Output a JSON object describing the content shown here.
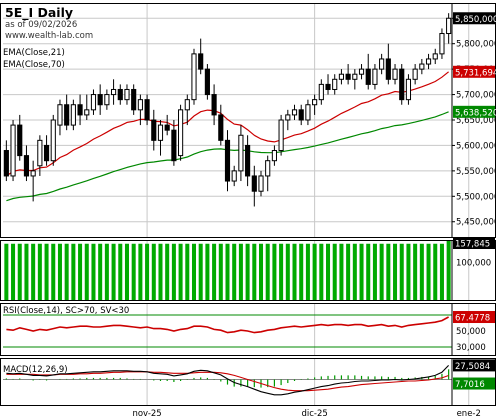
{
  "header": {
    "symbol": "5E_I Daily",
    "as_of": "as of 09/02/2026",
    "website": "www.wealth-lab.com"
  },
  "colors": {
    "up_candle": "#ffffff",
    "down_candle": "#000000",
    "ema21": "#cc0000",
    "ema70": "#008800",
    "volume": "#00aa00",
    "rsi": "#cc0000",
    "rsi_band": "#008800",
    "macd": "#000000",
    "signal": "#cc0000",
    "grid": "#c8c8c8"
  },
  "chart_data": [
    {
      "type": "candlestick",
      "panel": "price",
      "series_labels": [
        "EMA(Close,21)",
        "EMA(Close,70)"
      ],
      "ylim": [
        5420,
        5880
      ],
      "y_ticks": [
        "5,850,000",
        "5,800,000",
        "5,750,000",
        "5,700,000",
        "5,650,000",
        "5,600,000",
        "5,550,000",
        "5,500,000",
        "5,450,000"
      ],
      "y_tick_values": [
        5850,
        5800,
        5750,
        5700,
        5650,
        5600,
        5550,
        5500,
        5450
      ],
      "x_tick_labels": [
        "nov-25",
        "dic-25",
        "ene-2"
      ],
      "x_tick_index": [
        21,
        46,
        69
      ],
      "last_price_label": "5,850,000",
      "ema21_label": "5,731,694",
      "ema70_label": "5,638,520",
      "candles": [
        [
          5590,
          5610,
          5530,
          5540
        ],
        [
          5540,
          5650,
          5530,
          5640
        ],
        [
          5640,
          5660,
          5570,
          5580
        ],
        [
          5580,
          5600,
          5530,
          5540
        ],
        [
          5540,
          5570,
          5490,
          5550
        ],
        [
          5560,
          5620,
          5540,
          5610
        ],
        [
          5600,
          5620,
          5560,
          5570
        ],
        [
          5570,
          5660,
          5560,
          5650
        ],
        [
          5640,
          5690,
          5620,
          5680
        ],
        [
          5680,
          5700,
          5630,
          5640
        ],
        [
          5640,
          5690,
          5630,
          5680
        ],
        [
          5680,
          5700,
          5640,
          5660
        ],
        [
          5660,
          5700,
          5650,
          5670
        ],
        [
          5670,
          5710,
          5660,
          5700
        ],
        [
          5700,
          5720,
          5660,
          5680
        ],
        [
          5680,
          5710,
          5670,
          5700
        ],
        [
          5700,
          5730,
          5680,
          5710
        ],
        [
          5710,
          5720,
          5680,
          5690
        ],
        [
          5690,
          5720,
          5680,
          5710
        ],
        [
          5710,
          5720,
          5660,
          5670
        ],
        [
          5670,
          5700,
          5640,
          5690
        ],
        [
          5690,
          5700,
          5640,
          5650
        ],
        [
          5650,
          5670,
          5590,
          5610
        ],
        [
          5610,
          5650,
          5580,
          5640
        ],
        [
          5640,
          5660,
          5620,
          5630
        ],
        [
          5630,
          5650,
          5560,
          5570
        ],
        [
          5580,
          5680,
          5570,
          5670
        ],
        [
          5670,
          5700,
          5640,
          5690
        ],
        [
          5690,
          5790,
          5680,
          5780
        ],
        [
          5780,
          5810,
          5740,
          5750
        ],
        [
          5750,
          5760,
          5690,
          5700
        ],
        [
          5700,
          5720,
          5640,
          5660
        ],
        [
          5660,
          5680,
          5600,
          5610
        ],
        [
          5610,
          5630,
          5510,
          5530
        ],
        [
          5530,
          5560,
          5520,
          5550
        ],
        [
          5550,
          5640,
          5530,
          5620
        ],
        [
          5600,
          5620,
          5520,
          5540
        ],
        [
          5540,
          5560,
          5480,
          5510
        ],
        [
          5510,
          5550,
          5500,
          5540
        ],
        [
          5540,
          5580,
          5510,
          5570
        ],
        [
          5570,
          5600,
          5560,
          5590
        ],
        [
          5590,
          5660,
          5580,
          5650
        ],
        [
          5650,
          5670,
          5630,
          5660
        ],
        [
          5660,
          5680,
          5650,
          5670
        ],
        [
          5670,
          5680,
          5640,
          5650
        ],
        [
          5650,
          5690,
          5640,
          5680
        ],
        [
          5680,
          5700,
          5660,
          5690
        ],
        [
          5690,
          5730,
          5680,
          5720
        ],
        [
          5720,
          5740,
          5700,
          5710
        ],
        [
          5710,
          5740,
          5700,
          5730
        ],
        [
          5730,
          5750,
          5720,
          5740
        ],
        [
          5740,
          5760,
          5720,
          5730
        ],
        [
          5730,
          5750,
          5710,
          5740
        ],
        [
          5740,
          5760,
          5730,
          5750
        ],
        [
          5750,
          5780,
          5710,
          5720
        ],
        [
          5720,
          5760,
          5710,
          5750
        ],
        [
          5750,
          5780,
          5740,
          5770
        ],
        [
          5770,
          5800,
          5720,
          5730
        ],
        [
          5730,
          5760,
          5720,
          5750
        ],
        [
          5750,
          5760,
          5680,
          5690
        ],
        [
          5690,
          5740,
          5680,
          5730
        ],
        [
          5730,
          5760,
          5720,
          5750
        ],
        [
          5750,
          5770,
          5740,
          5760
        ],
        [
          5760,
          5780,
          5750,
          5770
        ],
        [
          5770,
          5790,
          5760,
          5780
        ],
        [
          5780,
          5830,
          5770,
          5820
        ],
        [
          5820,
          5860,
          5800,
          5850
        ]
      ]
    },
    {
      "type": "bar",
      "panel": "volume",
      "value_label": "157,845",
      "y_ticks": [
        "100,000"
      ],
      "y_tick_values": [
        100000
      ],
      "ylim": [
        0,
        160000
      ],
      "values": [
        150000,
        150000,
        150000,
        150000,
        150000,
        150000,
        150000,
        150000,
        150000,
        150000,
        150000,
        150000,
        150000,
        150000,
        150000,
        150000,
        150000,
        150000,
        150000,
        150000,
        150000,
        150000,
        150000,
        150000,
        150000,
        150000,
        150000,
        150000,
        150000,
        150000,
        150000,
        150000,
        150000,
        150000,
        150000,
        150000,
        150000,
        150000,
        150000,
        150000,
        150000,
        150000,
        150000,
        150000,
        150000,
        150000,
        150000,
        150000,
        150000,
        150000,
        150000,
        150000,
        150000,
        150000,
        150000,
        150000,
        150000,
        150000,
        150000,
        150000,
        150000,
        150000,
        150000,
        150000,
        150000,
        150000,
        157845
      ]
    },
    {
      "type": "line",
      "panel": "rsi",
      "title": "RSI(Close,14), SC>70, SV<30",
      "value_label": "67.4778",
      "ylim": [
        20,
        85
      ],
      "y_ticks": [
        "50,000",
        "30,000"
      ],
      "y_tick_values": [
        50,
        30
      ],
      "bands": [
        70,
        30
      ],
      "values": [
        52,
        51,
        54,
        52,
        50,
        52,
        51,
        53,
        55,
        54,
        55,
        56,
        56,
        55,
        55,
        56,
        57,
        57,
        56,
        55,
        54,
        55,
        53,
        53,
        52,
        50,
        52,
        53,
        56,
        56,
        55,
        52,
        51,
        48,
        49,
        51,
        50,
        48,
        49,
        51,
        52,
        54,
        55,
        56,
        55,
        56,
        57,
        58,
        57,
        58,
        58,
        57,
        58,
        58,
        56,
        57,
        58,
        56,
        57,
        55,
        57,
        58,
        59,
        60,
        61,
        63,
        67.48
      ]
    },
    {
      "type": "line",
      "panel": "macd",
      "title": "MACD(12,26,9)",
      "macd_label": "27,5084",
      "signal_label": "7,7016",
      "ylim": [
        -50,
        42
      ],
      "macd": [
        12,
        11,
        12,
        10,
        8,
        8,
        7,
        9,
        11,
        11,
        12,
        13,
        14,
        15,
        15,
        16,
        17,
        17,
        17,
        16,
        16,
        15,
        12,
        11,
        10,
        7,
        9,
        11,
        16,
        18,
        17,
        13,
        9,
        1,
        -6,
        -10,
        -14,
        -19,
        -24,
        -27,
        -30,
        -30,
        -28,
        -25,
        -23,
        -20,
        -17,
        -14,
        -12,
        -9,
        -7,
        -6,
        -4,
        -3,
        -3,
        -2,
        -1,
        -1,
        0,
        -1,
        0,
        1,
        3,
        5,
        8,
        14,
        27.5
      ],
      "signal": [
        10,
        10,
        10,
        10,
        10,
        9,
        9,
        9,
        10,
        10,
        10,
        11,
        11,
        12,
        12,
        13,
        14,
        14,
        15,
        15,
        15,
        15,
        14,
        14,
        13,
        12,
        12,
        12,
        13,
        14,
        14,
        14,
        13,
        11,
        8,
        4,
        0,
        -4,
        -8,
        -12,
        -16,
        -19,
        -21,
        -22,
        -22,
        -22,
        -21,
        -20,
        -19,
        -17,
        -15,
        -14,
        -12,
        -10,
        -9,
        -8,
        -7,
        -6,
        -5,
        -4,
        -3,
        -3,
        -2,
        -1,
        1,
        3,
        7.7
      ]
    }
  ]
}
